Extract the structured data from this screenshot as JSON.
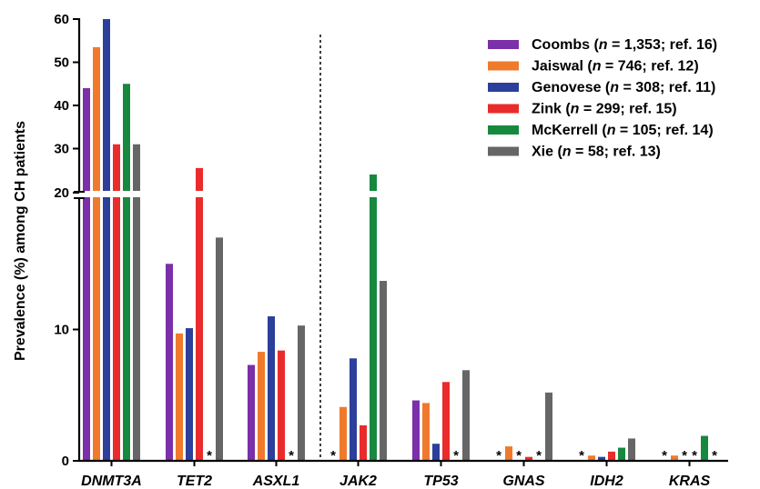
{
  "chart_data": {
    "type": "bar",
    "title": "",
    "xlabel": "",
    "ylabel": "Prevalence (%) among CH patients",
    "categories": [
      "DNMT3A",
      "TET2",
      "ASXL1",
      "JAK2",
      "TP53",
      "GNAS",
      "IDH2",
      "KRAS"
    ],
    "y_axis": "broken",
    "ylim_lower": [
      0,
      20
    ],
    "ylim_upper": [
      20,
      60
    ],
    "yticks_lower": [
      "0",
      "10"
    ],
    "yticks_upper": [
      "20",
      "30",
      "40",
      "50",
      "60"
    ],
    "missing_marker": "*",
    "series": [
      {
        "name": "Coombs (n = 1,353; ref. 16)",
        "label_main": "Coombs (",
        "label_n": "n",
        "label_rest": " = 1,353; ref. 16)",
        "color": "#7b2fa8",
        "values": [
          44,
          15,
          7.3,
          null,
          4.6,
          null,
          null,
          null
        ]
      },
      {
        "name": "Jaiswal (n = 746; ref. 12)",
        "label_main": "Jaiswal (",
        "label_n": "n",
        "label_rest": " = 746; ref. 12)",
        "color": "#f07a2c",
        "values": [
          53.5,
          9.7,
          8.3,
          4.1,
          4.4,
          1.1,
          0.4,
          0.4
        ]
      },
      {
        "name": "Genovese (n = 308; ref. 11)",
        "label_main": "Genovese (",
        "label_n": "n",
        "label_rest": " = 308; ref. 11)",
        "color": "#2b3f9b",
        "values": [
          60,
          10.1,
          11,
          7.8,
          1.3,
          null,
          0.3,
          null
        ]
      },
      {
        "name": "Zink (n = 299; ref. 15)",
        "label_main": "Zink (",
        "label_n": "n",
        "label_rest": " = 299; ref. 15)",
        "color": "#ea2b2b",
        "values": [
          31,
          25.5,
          8.4,
          2.7,
          6,
          0.3,
          0.7,
          null
        ]
      },
      {
        "name": "McKerrell (n = 105; ref. 14)",
        "label_main": "McKerrell (",
        "label_n": "n",
        "label_rest": " = 105; ref. 14)",
        "color": "#16893f",
        "values": [
          45,
          null,
          null,
          24,
          null,
          null,
          1,
          1.9
        ]
      },
      {
        "name": "Xie (n = 58; ref. 13)",
        "label_main": "Xie (",
        "label_n": "n",
        "label_rest": " = 58; ref. 13)",
        "color": "#666666",
        "values": [
          31,
          17,
          10.3,
          13.7,
          6.9,
          5.2,
          1.7,
          null
        ]
      }
    ],
    "legend_position": "top-right",
    "divider_after_category": "ASXL1"
  }
}
